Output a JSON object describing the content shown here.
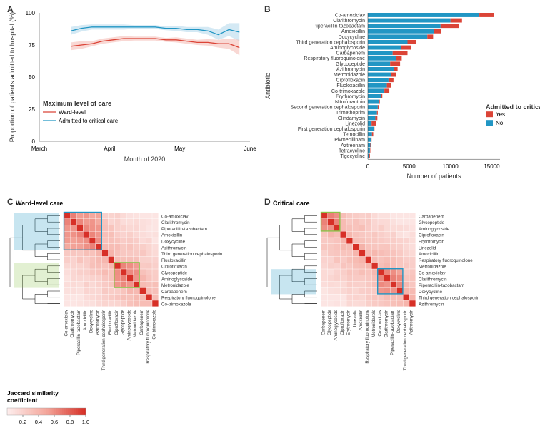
{
  "colors": {
    "red": "#db4437",
    "blue": "#2196c4",
    "grid": "#e0e0e0",
    "bg": "#ffffff",
    "red_fill": "#f2a8a0",
    "blue_fill": "#a0cfe6",
    "hm_low": "#fdeceb",
    "hm_mid": "#f4a79c",
    "hm_high": "#d73027",
    "dendro": "#000000",
    "box_blue": "#2196c4",
    "box_green": "#8bc34a"
  },
  "panel_labels": {
    "A": "A",
    "B": "B",
    "C": "C",
    "D": "D"
  },
  "panelA": {
    "x_title": "Month of 2020",
    "y_title": "Proportion of patients admitted to hospital (%)",
    "x_ticks": [
      "March",
      "April",
      "May",
      "June"
    ],
    "y_ticks": [
      0,
      25,
      50,
      75,
      100
    ],
    "legend_title": "Maximum level of care",
    "legend": [
      "Ward-level",
      "Admitted to critical care"
    ],
    "series": {
      "ward": {
        "x": [
          0.15,
          0.2,
          0.25,
          0.3,
          0.35,
          0.4,
          0.45,
          0.5,
          0.55,
          0.6,
          0.65,
          0.7,
          0.75,
          0.8,
          0.85,
          0.9,
          0.95
        ],
        "y": [
          74,
          75,
          76,
          78,
          79,
          80,
          80,
          80,
          80,
          79,
          79,
          78,
          77,
          77,
          76,
          76,
          73
        ],
        "ci": [
          3,
          3,
          2,
          2,
          2,
          2,
          1.5,
          1.5,
          1.5,
          1.5,
          2,
          2,
          2,
          2.5,
          3,
          4,
          6
        ]
      },
      "icu": {
        "x": [
          0.15,
          0.2,
          0.25,
          0.3,
          0.35,
          0.4,
          0.45,
          0.5,
          0.55,
          0.6,
          0.65,
          0.7,
          0.75,
          0.8,
          0.85,
          0.9,
          0.95
        ],
        "y": [
          86,
          88,
          89,
          89,
          89,
          89,
          89,
          89,
          89,
          88,
          88,
          87,
          87,
          86,
          83,
          87,
          85
        ],
        "ci": [
          3,
          2.5,
          2,
          2,
          2,
          2,
          1.5,
          1.5,
          1.5,
          1.5,
          2,
          2,
          2,
          3,
          4,
          5,
          7
        ]
      }
    }
  },
  "panelB": {
    "x_title": "Number of patients",
    "y_title": "Antibiotic",
    "x_ticks": [
      0,
      5000,
      10000,
      15000
    ],
    "legend_title": "Admitted to critical care",
    "legend": [
      "Yes",
      "No"
    ],
    "bars": [
      {
        "name": "Co-amoxiclav",
        "no": 13500,
        "yes": 1800
      },
      {
        "name": "Clarithromycin",
        "no": 10000,
        "yes": 1400
      },
      {
        "name": "Piperacillin-tazobactam",
        "no": 8800,
        "yes": 2200
      },
      {
        "name": "Amoxicillin",
        "no": 8000,
        "yes": 900
      },
      {
        "name": "Doxycycline",
        "no": 7200,
        "yes": 700
      },
      {
        "name": "Third generation cephalosporin",
        "no": 4800,
        "yes": 1000
      },
      {
        "name": "Aminoglycoside",
        "no": 4000,
        "yes": 1200
      },
      {
        "name": "Carbapenem",
        "no": 3000,
        "yes": 1800
      },
      {
        "name": "Respiratory fluoroquinolone",
        "no": 3400,
        "yes": 700
      },
      {
        "name": "Glycopeptide",
        "no": 2700,
        "yes": 1200
      },
      {
        "name": "Azithromycin",
        "no": 3200,
        "yes": 400
      },
      {
        "name": "Metronidazole",
        "no": 2800,
        "yes": 600
      },
      {
        "name": "Ciprofloxacin",
        "no": 2500,
        "yes": 600
      },
      {
        "name": "Flucloxacillin",
        "no": 2300,
        "yes": 500
      },
      {
        "name": "Co-trimoxazole",
        "no": 2000,
        "yes": 600
      },
      {
        "name": "Erythromycin",
        "no": 1600,
        "yes": 150
      },
      {
        "name": "Nitrofurantoin",
        "no": 1300,
        "yes": 150
      },
      {
        "name": "Second generation cephalosporin",
        "no": 1200,
        "yes": 150
      },
      {
        "name": "Trimethoprim",
        "no": 1100,
        "yes": 100
      },
      {
        "name": "Clindamycin",
        "no": 900,
        "yes": 250
      },
      {
        "name": "Linezolid",
        "no": 450,
        "yes": 550
      },
      {
        "name": "First generation cephalosporin",
        "no": 700,
        "yes": 100
      },
      {
        "name": "Temocillin",
        "no": 500,
        "yes": 150
      },
      {
        "name": "Pivmecillinam",
        "no": 400,
        "yes": 50
      },
      {
        "name": "Aztreonam",
        "no": 300,
        "yes": 100
      },
      {
        "name": "Tetracycline",
        "no": 250,
        "yes": 50
      },
      {
        "name": "Tigecycline",
        "no": 150,
        "yes": 100
      }
    ]
  },
  "panelC": {
    "title": "Ward-level care",
    "labels": [
      "Co-amoxiclav",
      "Clarithromycin",
      "Piperacillin-tazobactam",
      "Amoxicillin",
      "Doxycycline",
      "Azithromycin",
      "Third generation cephalosporin",
      "Flucloxacillin",
      "Ciprofloxacin",
      "Glycopeptide",
      "Aminoglycoside",
      "Metronidazole",
      "Carbapenem",
      "Respiratory fluoroquinolone",
      "Co-trimoxazole"
    ],
    "boxes": [
      {
        "type": "blue",
        "i0": 0,
        "i1": 5
      },
      {
        "type": "green",
        "i0": 8,
        "i1": 11
      }
    ],
    "dendro_boxes": [
      {
        "type": "blue",
        "r0": 0,
        "r1": 5
      },
      {
        "type": "green",
        "r0": 8,
        "r1": 11
      }
    ]
  },
  "panelD": {
    "title": "Critical care",
    "labels": [
      "Carbapenem",
      "Glycopeptide",
      "Aminoglycoside",
      "Ciprofloxacin",
      "Erythromycin",
      "Linezolid",
      "Amoxicillin",
      "Respiratory fluoroquinolone",
      "Metronidazole",
      "Co-amoxiclav",
      "Clarithromycin",
      "Piperacillin-tazobactam",
      "Doxycycline",
      "Third generation cephalosporin",
      "Azithromycin"
    ],
    "boxes": [
      {
        "type": "blue",
        "i0": 9,
        "i1": 12
      },
      {
        "type": "green",
        "i0": 0,
        "i1": 2
      }
    ],
    "dendro_boxes": [
      {
        "type": "blue",
        "r0": 9,
        "r1": 12
      }
    ]
  },
  "jaccard": {
    "title": "Jaccard similarity\ncoefficient",
    "ticks": [
      0.2,
      0.4,
      0.6,
      0.8,
      1.0
    ]
  }
}
